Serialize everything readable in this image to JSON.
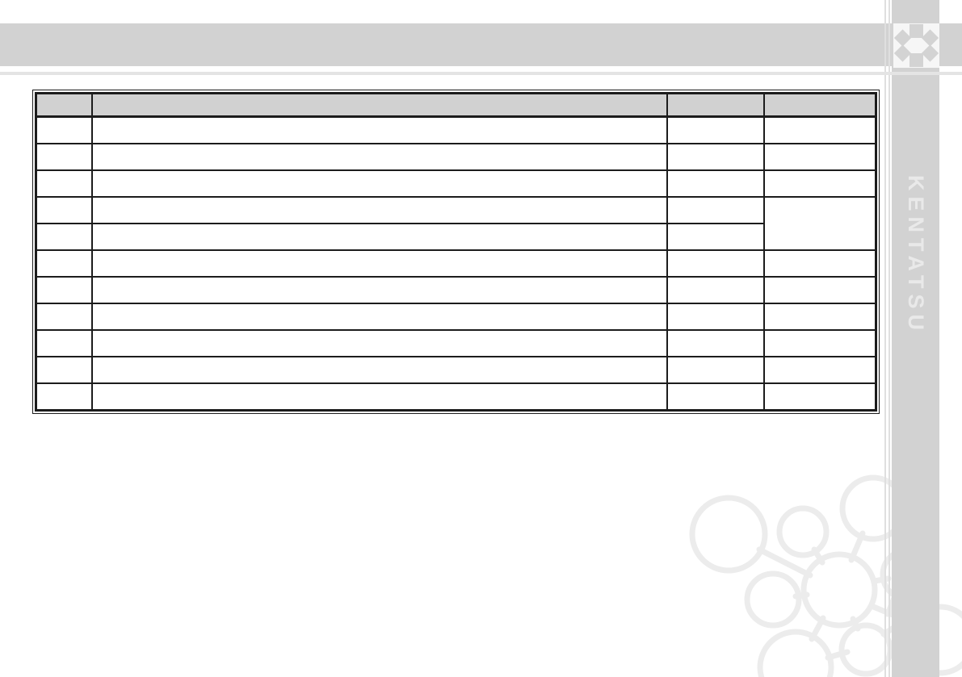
{
  "brand": {
    "name": "KENTATSU",
    "logo_icon": "kentatsu-snowflake-icon"
  },
  "colors": {
    "band_gray": "#d2d2d2",
    "rule_h": "#e4e4e4",
    "rule_v": "#dfdfdf",
    "table_border": "#1c1c1c",
    "table_header_bg": "#d1d1d1",
    "tile_bg": "#f6f6f6",
    "logo_glyph": "#d3d3d3",
    "brand_text": "#e9e9e9",
    "mol_light": "#ececec",
    "mol_white": "#fbfbfb"
  },
  "table": {
    "header_cells": [
      "",
      "",
      "",
      ""
    ],
    "body_rows": [
      [
        "",
        "",
        "",
        ""
      ],
      [
        "",
        "",
        "",
        ""
      ],
      [
        "",
        "",
        "",
        ""
      ],
      [
        "",
        "",
        "",
        ""
      ],
      [
        "",
        "",
        ""
      ],
      [
        "",
        "",
        "",
        ""
      ],
      [
        "",
        "",
        "",
        ""
      ],
      [
        "",
        "",
        "",
        ""
      ],
      [
        "",
        "",
        "",
        ""
      ],
      [
        "",
        "",
        "",
        ""
      ],
      [
        "",
        "",
        "",
        ""
      ]
    ],
    "merged_cell": {
      "row": 3,
      "col": 3,
      "rowspan": 2
    }
  }
}
